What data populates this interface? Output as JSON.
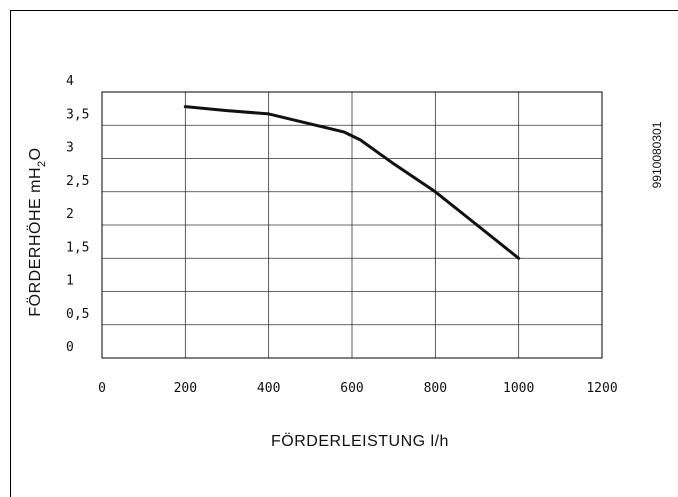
{
  "chart_data": {
    "type": "line",
    "xlabel": "FÖRDERLEISTUNG l/h",
    "ylabel_main": "FÖRDERHÖHE mH",
    "ylabel_sub": "2",
    "ylabel_end": "O",
    "code_label": "9910080301",
    "xlim": [
      0,
      1200
    ],
    "ylim": [
      0,
      4
    ],
    "x_ticks": [
      {
        "v": 0,
        "label": "0"
      },
      {
        "v": 200,
        "label": "200"
      },
      {
        "v": 400,
        "label": "400"
      },
      {
        "v": 600,
        "label": "600"
      },
      {
        "v": 800,
        "label": "800"
      },
      {
        "v": 1000,
        "label": "1000"
      },
      {
        "v": 1200,
        "label": "1200"
      }
    ],
    "y_ticks": [
      {
        "v": 0,
        "label": "0"
      },
      {
        "v": 0.5,
        "label": "0,5"
      },
      {
        "v": 1,
        "label": "1"
      },
      {
        "v": 1.5,
        "label": "1,5"
      },
      {
        "v": 2,
        "label": "2"
      },
      {
        "v": 2.5,
        "label": "2,5"
      },
      {
        "v": 3,
        "label": "3"
      },
      {
        "v": 3.5,
        "label": "3,5"
      },
      {
        "v": 4,
        "label": "4"
      }
    ],
    "grid": true,
    "series": [
      {
        "x": [
          200,
          300,
          400,
          500,
          580,
          620,
          700,
          800,
          900,
          1000
        ],
        "y": [
          3.78,
          3.72,
          3.67,
          3.52,
          3.4,
          3.28,
          2.92,
          2.5,
          2.0,
          1.5
        ]
      }
    ]
  }
}
